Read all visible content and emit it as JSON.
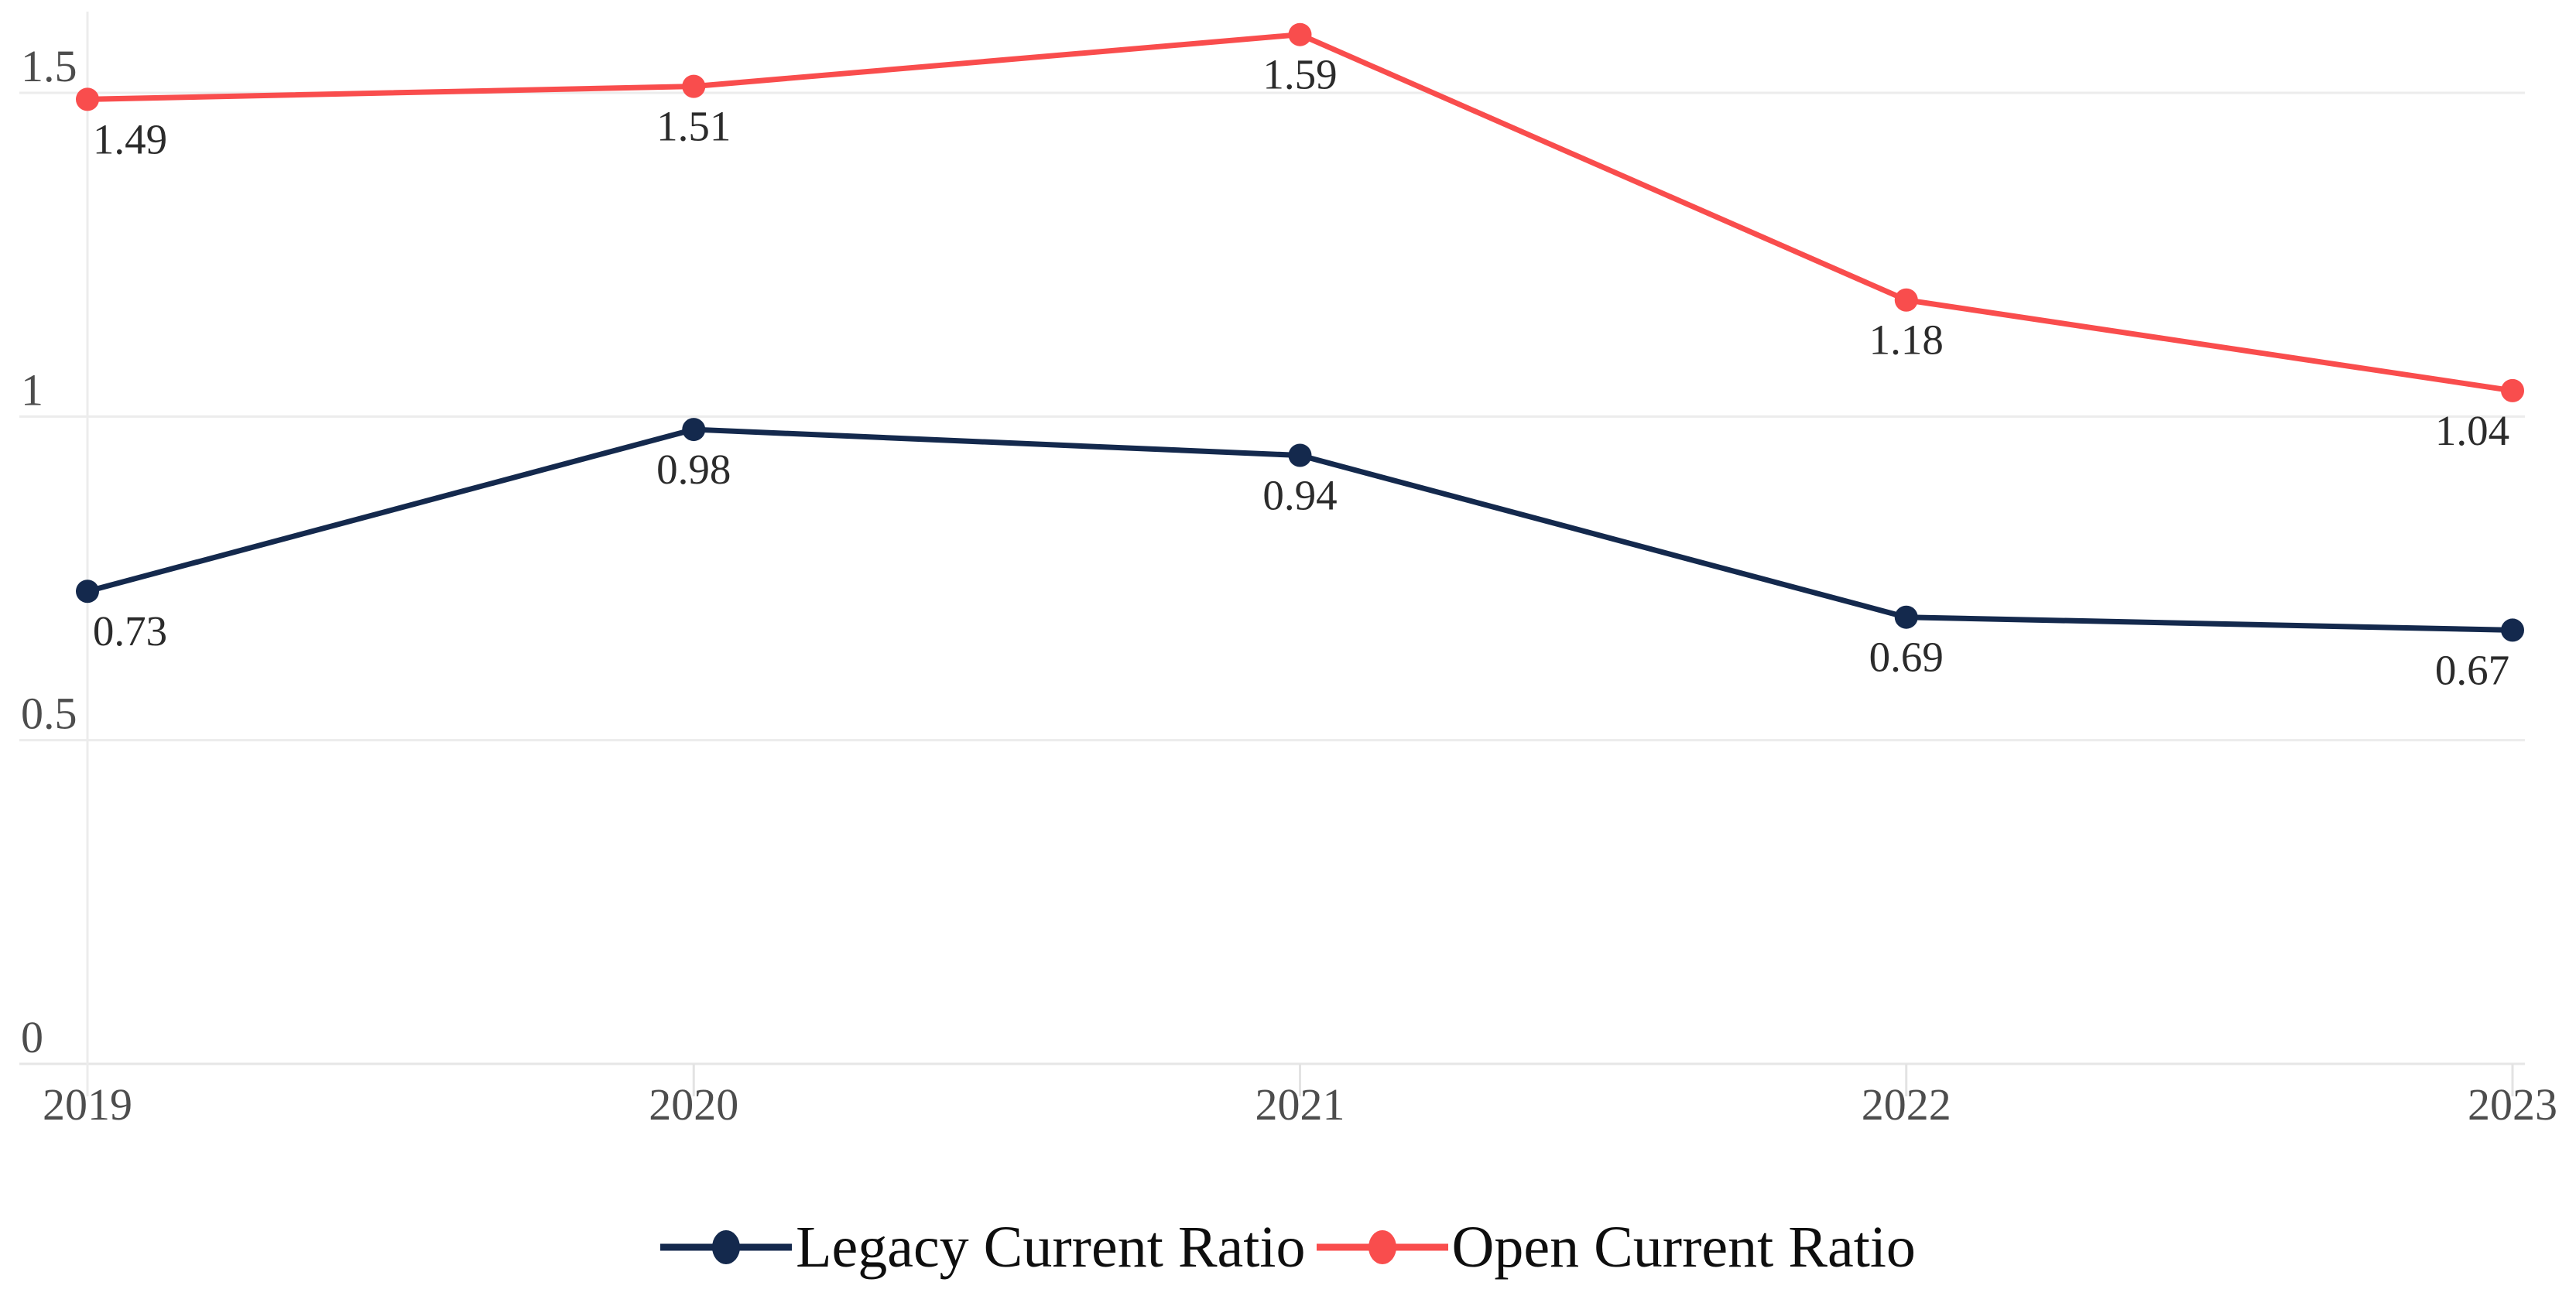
{
  "chart_data": {
    "type": "line",
    "title": "",
    "x": [
      "2019",
      "2020",
      "2021",
      "2022",
      "2023"
    ],
    "series": [
      {
        "name": "Legacy Current Ratio",
        "color": "#14294D",
        "values": [
          0.73,
          0.98,
          0.94,
          0.69,
          0.67
        ]
      },
      {
        "name": "Open Current Ratio",
        "color": "#F94D4D",
        "values": [
          1.49,
          1.51,
          1.59,
          1.18,
          1.04
        ]
      }
    ],
    "y_ticks": [
      0,
      0.5,
      1,
      1.5
    ],
    "y_tick_labels": [
      "0",
      "0.5",
      "1",
      "1.5"
    ],
    "ylim": [
      0,
      1.65
    ],
    "grid": "horizontal",
    "data_labels_visible": true,
    "legend_position": "bottom-center",
    "colors": {
      "background": "#FFFFFF",
      "grid": "#ECECEC",
      "axis_line": "#E6E6E6",
      "tick": "#E3E3E3",
      "axis_label": "#4D4D4D",
      "data_label": "#2B2B2B",
      "legend_text": "#0E0E0E"
    }
  }
}
